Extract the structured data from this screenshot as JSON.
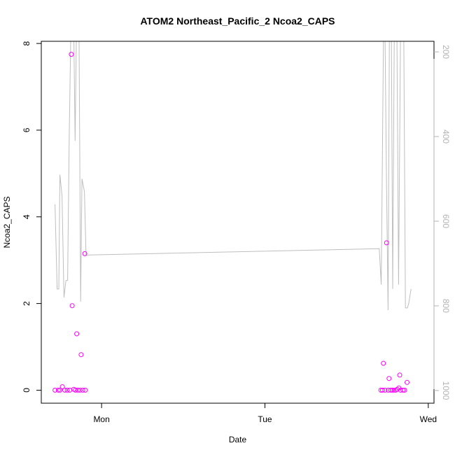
{
  "chart_data": {
    "type": "scatter",
    "title": "ATOM2 Northeast_Pacific_2 Ncoa2_CAPS",
    "xlabel": "Date",
    "ylabel": "Ncoa2_CAPS",
    "x_ticks": [
      {
        "day": 1,
        "label": "Mon"
      },
      {
        "day": 2,
        "label": "Tue"
      },
      {
        "day": 3,
        "label": "Wed"
      }
    ],
    "xlim": [
      0.631,
      3.035
    ],
    "ylim": [
      -0.3,
      8.05
    ],
    "y_ticks": [
      0,
      2,
      4,
      6,
      8
    ],
    "y2lim": [
      1030,
      175
    ],
    "y2_ticks": [
      200,
      400,
      600,
      800,
      1000
    ],
    "colors": {
      "points": "#ff00ff",
      "depth_line": "#bebebe",
      "axis": "#000000",
      "right_axis": "#b3b3b3"
    },
    "series": [
      {
        "marker": "circle-open",
        "points": [
          [
            0.715,
            0.0
          ],
          [
            0.735,
            0.0
          ],
          [
            0.745,
            0.0
          ],
          [
            0.76,
            0.08
          ],
          [
            0.775,
            0.0
          ],
          [
            0.79,
            0.0
          ],
          [
            0.805,
            0.0
          ],
          [
            0.815,
            7.75
          ],
          [
            0.82,
            1.95
          ],
          [
            0.83,
            0.02
          ],
          [
            0.84,
            0.0
          ],
          [
            0.848,
            1.3
          ],
          [
            0.855,
            0.0
          ],
          [
            0.868,
            0.0
          ],
          [
            0.875,
            0.82
          ],
          [
            0.885,
            0.0
          ],
          [
            0.897,
            3.15
          ],
          [
            0.9,
            0.0
          ],
          [
            2.71,
            0.0
          ],
          [
            2.72,
            0.0
          ],
          [
            2.725,
            0.62
          ],
          [
            2.735,
            0.0
          ],
          [
            2.745,
            3.4
          ],
          [
            2.755,
            0.0
          ],
          [
            2.76,
            0.27
          ],
          [
            2.77,
            0.0
          ],
          [
            2.78,
            0.0
          ],
          [
            2.79,
            0.0
          ],
          [
            2.8,
            0.0
          ],
          [
            2.81,
            0.02
          ],
          [
            2.82,
            0.05
          ],
          [
            2.825,
            0.35
          ],
          [
            2.83,
            0.0
          ],
          [
            2.845,
            0.0
          ],
          [
            2.855,
            0.0
          ],
          [
            2.87,
            0.18
          ]
        ]
      }
    ],
    "depth_line": [
      [
        0.715,
        560
      ],
      [
        0.728,
        760
      ],
      [
        0.738,
        760
      ],
      [
        0.745,
        490
      ],
      [
        0.758,
        540
      ],
      [
        0.77,
        780
      ],
      [
        0.782,
        740
      ],
      [
        0.792,
        740
      ],
      [
        0.802,
        400
      ],
      [
        0.812,
        150
      ],
      [
        0.82,
        150
      ],
      [
        0.83,
        150
      ],
      [
        0.838,
        410
      ],
      [
        0.846,
        150
      ],
      [
        0.855,
        150
      ],
      [
        0.862,
        150
      ],
      [
        0.872,
        790
      ],
      [
        0.88,
        500
      ],
      [
        0.895,
        530
      ],
      [
        0.905,
        680
      ],
      [
        2.7,
        665
      ],
      [
        2.712,
        750
      ],
      [
        2.718,
        500
      ],
      [
        2.726,
        150
      ],
      [
        2.735,
        150
      ],
      [
        2.744,
        500
      ],
      [
        2.754,
        810
      ],
      [
        2.762,
        150
      ],
      [
        2.774,
        150
      ],
      [
        2.782,
        760
      ],
      [
        2.792,
        150
      ],
      [
        2.808,
        150
      ],
      [
        2.818,
        750
      ],
      [
        2.83,
        150
      ],
      [
        2.85,
        150
      ],
      [
        2.86,
        805
      ],
      [
        2.872,
        805
      ],
      [
        2.88,
        795
      ],
      [
        2.895,
        760
      ]
    ]
  }
}
